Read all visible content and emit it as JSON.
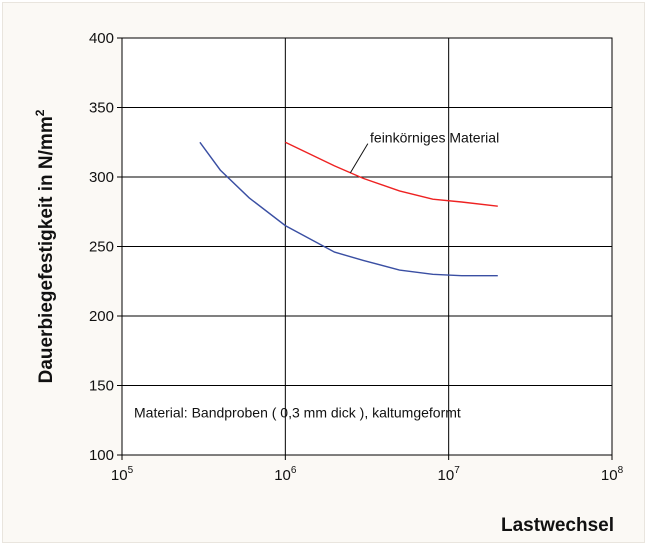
{
  "chart_data": {
    "type": "line",
    "xlabel": "Lastwechsel",
    "ylabel": "Dauerbiegefestigkeit in N/mm",
    "ylabel_superscript": "2",
    "x_scale": "log",
    "xlim": [
      100000,
      100000000
    ],
    "ylim": [
      100,
      400
    ],
    "x_ticks": [
      {
        "base": "10",
        "exp": "5",
        "value": 100000
      },
      {
        "base": "10",
        "exp": "6",
        "value": 1000000
      },
      {
        "base": "10",
        "exp": "7",
        "value": 10000000
      },
      {
        "base": "10",
        "exp": "8",
        "value": 100000000
      }
    ],
    "y_ticks": [
      100,
      150,
      200,
      250,
      300,
      350,
      400
    ],
    "grid": true,
    "series": [
      {
        "name": "feinkörniges Material",
        "color": "#ee2222",
        "points": [
          [
            1000000,
            325
          ],
          [
            2000000,
            308
          ],
          [
            3000000,
            299
          ],
          [
            5000000,
            290
          ],
          [
            8000000,
            284
          ],
          [
            12000000,
            282
          ],
          [
            20000000,
            279
          ]
        ]
      },
      {
        "color": "#3a4fa3",
        "points": [
          [
            300000,
            325
          ],
          [
            400000,
            305
          ],
          [
            600000,
            285
          ],
          [
            1000000,
            265
          ],
          [
            2000000,
            246
          ],
          [
            3000000,
            240
          ],
          [
            5000000,
            233
          ],
          [
            8000000,
            230
          ],
          [
            12000000,
            229
          ],
          [
            20000000,
            229
          ]
        ]
      }
    ],
    "annotations": {
      "series_label": "feinkörniges Material",
      "note": "Material: Bandproben ( 0,3  mm dick ), kaltumgeformt"
    }
  }
}
